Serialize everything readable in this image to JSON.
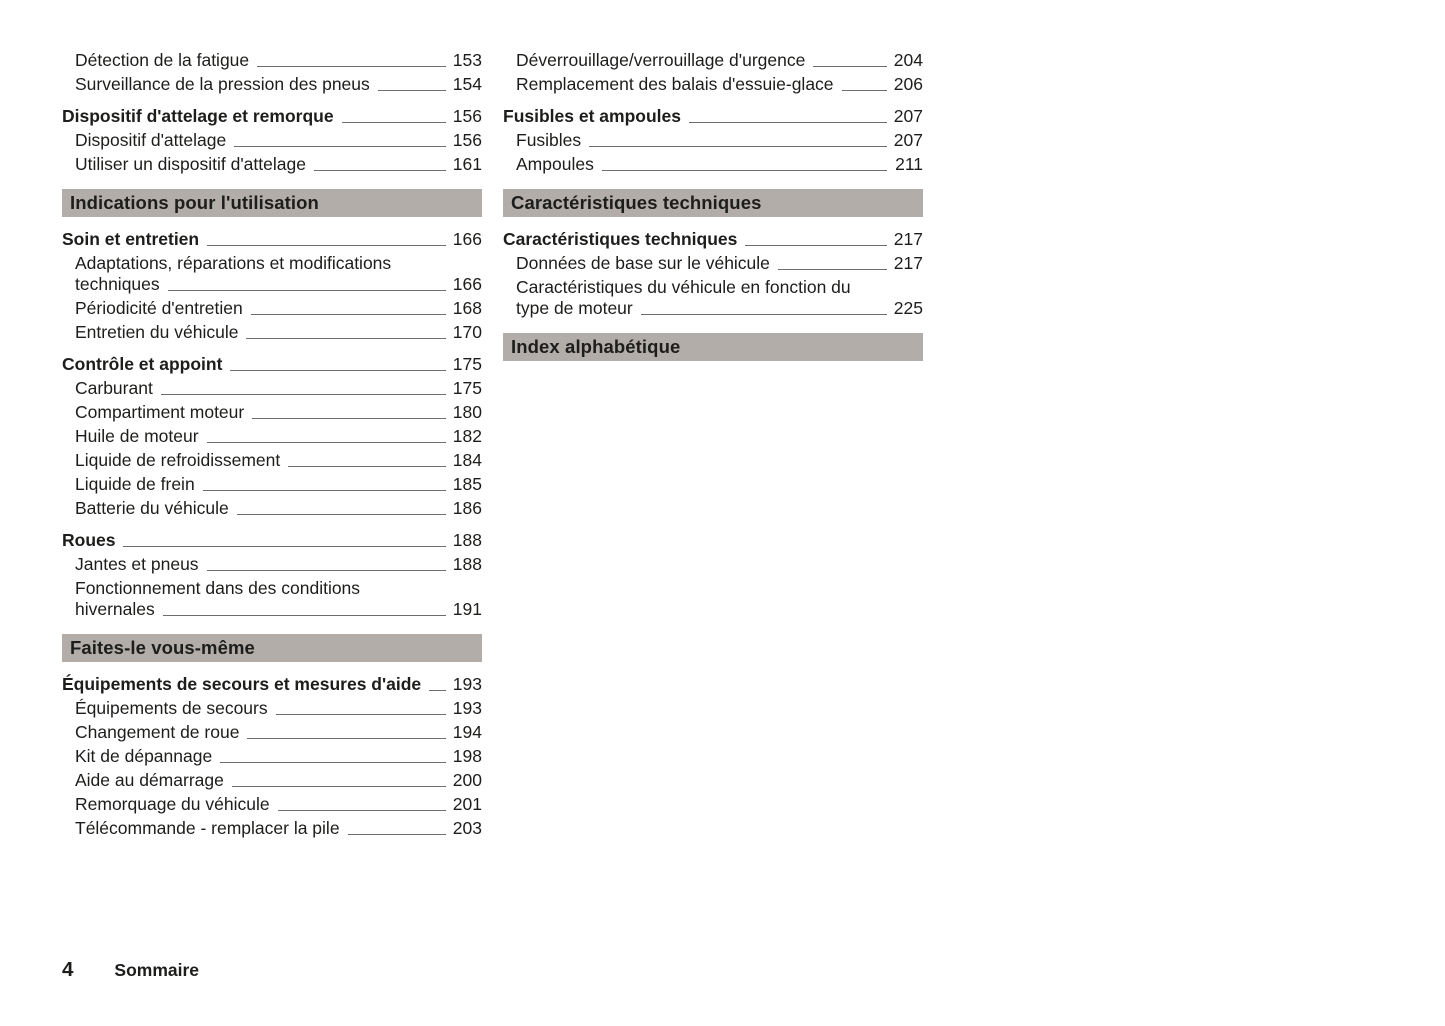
{
  "colors": {
    "text": "#1d1d1b",
    "section_bar_bg": "#b3adaa",
    "leader_line": "#6f6b69",
    "page_bg": "#ffffff"
  },
  "footer": {
    "page_number": "4",
    "section_label": "Sommaire"
  },
  "toc": {
    "columns": [
      {
        "blocks": [
          {
            "type": "entries",
            "items": [
              {
                "label": "Détection de la fatigue",
                "page": "153",
                "level": 1
              },
              {
                "label": "Surveillance de la pression des pneus",
                "page": "154",
                "level": 1
              }
            ]
          },
          {
            "type": "entries",
            "items": [
              {
                "label": "Dispositif d'attelage et remorque",
                "page": "156",
                "level": 0
              },
              {
                "label": "Dispositif d'attelage",
                "page": "156",
                "level": 1
              },
              {
                "label": "Utiliser un dispositif d'attelage",
                "page": "161",
                "level": 1
              }
            ]
          },
          {
            "type": "section-header",
            "label": "Indications pour l'utilisation"
          },
          {
            "type": "entries",
            "items": [
              {
                "label": "Soin et entretien",
                "page": "166",
                "level": 0
              },
              {
                "lines": [
                  "Adaptations, réparations et modifications",
                  "techniques"
                ],
                "page": "166",
                "level": 1
              },
              {
                "label": "Périodicité d'entretien",
                "page": "168",
                "level": 1
              },
              {
                "label": "Entretien du véhicule",
                "page": "170",
                "level": 1
              }
            ]
          },
          {
            "type": "entries",
            "items": [
              {
                "label": "Contrôle et appoint",
                "page": "175",
                "level": 0
              },
              {
                "label": "Carburant",
                "page": "175",
                "level": 1
              },
              {
                "label": "Compartiment moteur",
                "page": "180",
                "level": 1
              },
              {
                "label": "Huile de moteur",
                "page": "182",
                "level": 1
              },
              {
                "label": "Liquide de refroidissement",
                "page": "184",
                "level": 1
              },
              {
                "label": "Liquide de frein",
                "page": "185",
                "level": 1
              },
              {
                "label": "Batterie du véhicule",
                "page": "186",
                "level": 1
              }
            ]
          },
          {
            "type": "entries",
            "items": [
              {
                "label": "Roues",
                "page": "188",
                "level": 0
              },
              {
                "label": "Jantes et pneus",
                "page": "188",
                "level": 1
              },
              {
                "lines": [
                  "Fonctionnement dans des conditions",
                  "hivernales"
                ],
                "page": "191",
                "level": 1
              }
            ]
          },
          {
            "type": "section-header",
            "label": "Faites-le vous-même"
          },
          {
            "type": "entries",
            "items": [
              {
                "label": "Équipements de secours et mesures d'aide",
                "page": "193",
                "level": 0
              },
              {
                "label": "Équipements de secours",
                "page": "193",
                "level": 1
              },
              {
                "label": "Changement de roue",
                "page": "194",
                "level": 1
              },
              {
                "label": "Kit de dépannage",
                "page": "198",
                "level": 1
              },
              {
                "label": "Aide au démarrage",
                "page": "200",
                "level": 1
              },
              {
                "label": "Remorquage du véhicule",
                "page": "201",
                "level": 1
              },
              {
                "label": "Télécommande - remplacer la pile",
                "page": "203",
                "level": 1
              }
            ]
          }
        ]
      },
      {
        "blocks": [
          {
            "type": "entries",
            "items": [
              {
                "label": "Déverrouillage/verrouillage d'urgence",
                "page": "204",
                "level": 1
              },
              {
                "label": "Remplacement des balais d'essuie-glace",
                "page": "206",
                "level": 1
              }
            ]
          },
          {
            "type": "entries",
            "items": [
              {
                "label": "Fusibles et ampoules",
                "page": "207",
                "level": 0
              },
              {
                "label": "Fusibles",
                "page": "207",
                "level": 1
              },
              {
                "label": "Ampoules",
                "page": "211",
                "level": 1
              }
            ]
          },
          {
            "type": "section-header",
            "label": "Caractéristiques techniques"
          },
          {
            "type": "entries",
            "items": [
              {
                "label": "Caractéristiques techniques",
                "page": "217",
                "level": 0
              },
              {
                "label": "Données de base sur le véhicule",
                "page": "217",
                "level": 1
              },
              {
                "lines": [
                  "Caractéristiques du véhicule en fonction du",
                  "type de moteur"
                ],
                "page": "225",
                "level": 1
              }
            ]
          },
          {
            "type": "section-header",
            "label": "Index alphabétique"
          }
        ]
      }
    ]
  }
}
